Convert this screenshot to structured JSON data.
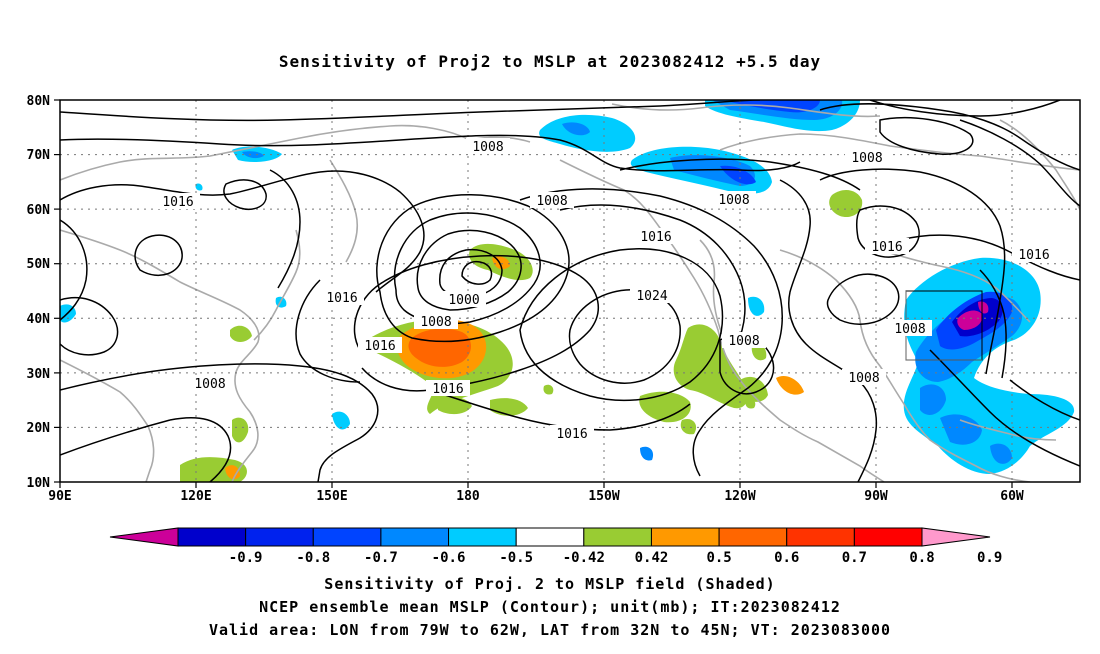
{
  "title": "Sensitivity of Proj2 to MSLP at 2023082412 +5.5 day",
  "map": {
    "lat_labels": [
      "80N",
      "70N",
      "60N",
      "50N",
      "40N",
      "30N",
      "20N",
      "10N"
    ],
    "lon_labels": [
      "90E",
      "120E",
      "150E",
      "180",
      "150W",
      "120W",
      "90W",
      "60W"
    ],
    "contour_labels": {
      "c1008_top": "1008",
      "c1008_mid": "1008",
      "c1008_right": "1008",
      "c1008_ne": "1008",
      "c1016_nw": "1016",
      "c1016_japan": "1016",
      "c1016_n": "1016",
      "c1016_canada": "1016",
      "c1016_atl": "1016",
      "c1000": "1000",
      "c1008_low": "1008",
      "c1016_low": "1016",
      "c1016_s": "1016",
      "c1016_pac": "1016",
      "c1024": "1024",
      "c1008_wpac": "1008",
      "c1008_baja": "1008",
      "c1008_gulf": "1008",
      "c1008_east": "1008"
    },
    "valid_area": {
      "lon_min": -79,
      "lon_max": -62,
      "lat_min": 32,
      "lat_max": 45
    },
    "colors": {
      "green": "#99cc33",
      "orange_light": "#ff9900",
      "orange": "#ff6600",
      "cyan": "#00ccff",
      "blue_light": "#0088ff",
      "blue": "#0044ff",
      "blue_dark": "#0000cc",
      "magenta": "#cc0099"
    }
  },
  "colorbar": {
    "labels": [
      "-0.9",
      "-0.8",
      "-0.7",
      "-0.6",
      "-0.5",
      "-0.42",
      "0.42",
      "0.5",
      "0.6",
      "0.7",
      "0.8",
      "0.9"
    ],
    "colors": [
      "#cc0099",
      "#0000cc",
      "#0022ee",
      "#0044ff",
      "#0088ff",
      "#00ccff",
      "#ffffff",
      "#99cc33",
      "#ff9900",
      "#ff6600",
      "#ff3300",
      "#ff0000",
      "#ff99cc"
    ]
  },
  "captions": {
    "line1": "Sensitivity of Proj. 2 to MSLP field (Shaded)",
    "line2": "NCEP ensemble mean MSLP (Contour); unit(mb); IT:2023082412",
    "line3": "Valid area: LON from 79W to 62W, LAT from 32N to 45N; VT: 2023083000"
  }
}
